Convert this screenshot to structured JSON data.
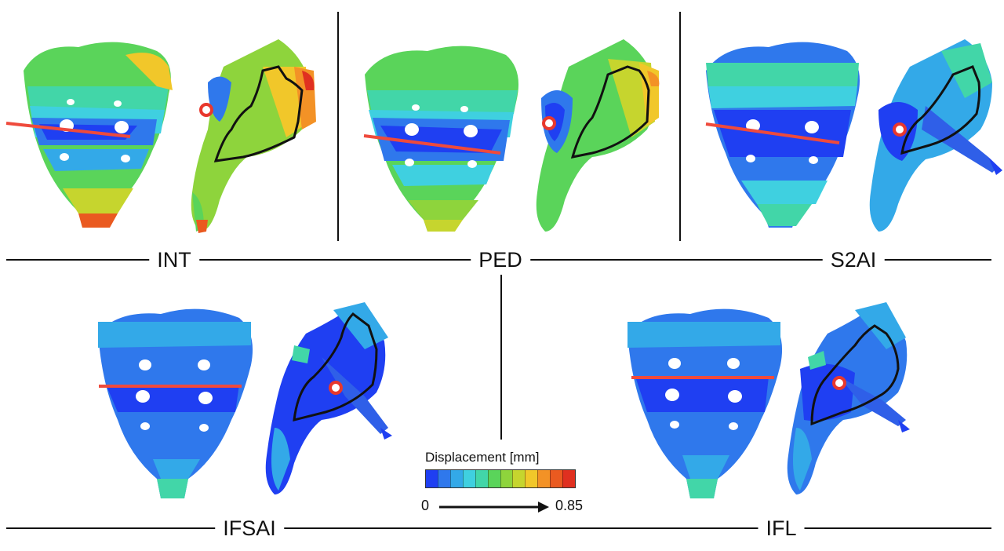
{
  "scenarios": [
    {
      "label": "INT"
    },
    {
      "label": "PED"
    },
    {
      "label": "S2AI"
    },
    {
      "label": "IFSAI"
    },
    {
      "label": "IFL"
    }
  ],
  "legend": {
    "title": "Displacement [mm]",
    "min": "0",
    "max": "0.85",
    "colors": [
      "#1f3ff2",
      "#2f78ec",
      "#33a9e8",
      "#3fd0e0",
      "#42d6a8",
      "#5ad45a",
      "#8ed43c",
      "#c6d52e",
      "#f1c72a",
      "#f39226",
      "#ea5a20",
      "#e03020"
    ]
  },
  "colors": {
    "cut_line": "#ef4a3c",
    "marker": "#e8382d",
    "outline": "#111111"
  }
}
